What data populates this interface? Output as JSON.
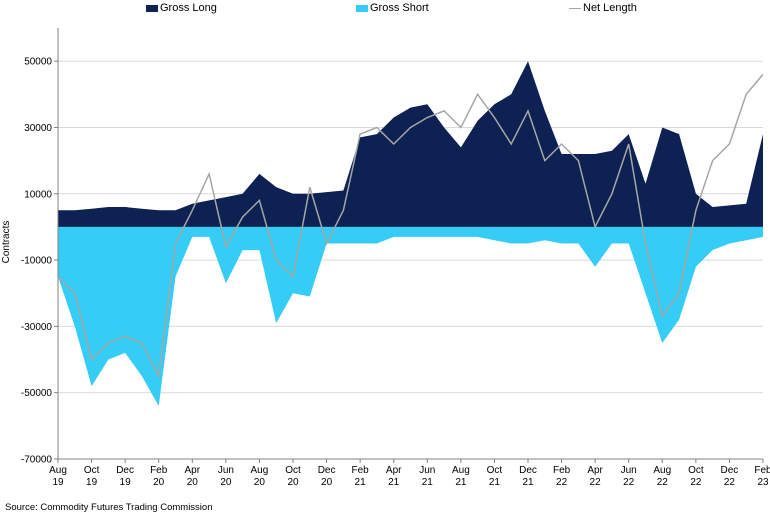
{
  "chart_data": {
    "type": "area",
    "ylabel": "Contracts",
    "ylim": [
      -70000,
      60000
    ],
    "yticks": [
      50000,
      30000,
      10000,
      -10000,
      -30000,
      -50000,
      -70000
    ],
    "ytick_labels": [
      "50000",
      "30000",
      "10000",
      "-10000",
      "-30000",
      "-50000",
      "-70000"
    ],
    "x_tick_labels": [
      {
        "m": "Aug",
        "y": "19"
      },
      {
        "m": "Oct",
        "y": "19"
      },
      {
        "m": "Dec",
        "y": "19"
      },
      {
        "m": "Feb",
        "y": "20"
      },
      {
        "m": "Apr",
        "y": "20"
      },
      {
        "m": "Jun",
        "y": "20"
      },
      {
        "m": "Aug",
        "y": "20"
      },
      {
        "m": "Oct",
        "y": "20"
      },
      {
        "m": "Dec",
        "y": "20"
      },
      {
        "m": "Feb",
        "y": "21"
      },
      {
        "m": "Apr",
        "y": "21"
      },
      {
        "m": "Jun",
        "y": "21"
      },
      {
        "m": "Aug",
        "y": "21"
      },
      {
        "m": "Oct",
        "y": "21"
      },
      {
        "m": "Dec",
        "y": "21"
      },
      {
        "m": "Feb",
        "y": "22"
      },
      {
        "m": "Apr",
        "y": "22"
      },
      {
        "m": "Jun",
        "y": "22"
      },
      {
        "m": "Aug",
        "y": "22"
      },
      {
        "m": "Oct",
        "y": "22"
      },
      {
        "m": "Dec",
        "y": "22"
      },
      {
        "m": "Feb",
        "y": "23"
      }
    ],
    "x": [
      "2019-08",
      "2019-09",
      "2019-10",
      "2019-11",
      "2019-12",
      "2020-01",
      "2020-02",
      "2020-03",
      "2020-04",
      "2020-05",
      "2020-06",
      "2020-07",
      "2020-08",
      "2020-09",
      "2020-10",
      "2020-11",
      "2020-12",
      "2021-01",
      "2021-02",
      "2021-03",
      "2021-04",
      "2021-05",
      "2021-06",
      "2021-07",
      "2021-08",
      "2021-09",
      "2021-10",
      "2021-11",
      "2021-12",
      "2022-01",
      "2022-02",
      "2022-03",
      "2022-04",
      "2022-05",
      "2022-06",
      "2022-07",
      "2022-08",
      "2022-09",
      "2022-10",
      "2022-11",
      "2022-12",
      "2023-01",
      "2023-02"
    ],
    "series": [
      {
        "name": "Gross Long",
        "color": "#0d2152",
        "values": [
          5000,
          5000,
          5500,
          6000,
          6000,
          5500,
          5000,
          5000,
          7000,
          8000,
          9000,
          10000,
          16000,
          12000,
          10000,
          10000,
          10500,
          11000,
          27000,
          28000,
          33000,
          36000,
          37000,
          30000,
          24000,
          32000,
          37000,
          40000,
          50000,
          35000,
          22000,
          22000,
          22000,
          23000,
          28000,
          13000,
          30000,
          28000,
          10000,
          6000,
          6500,
          7000,
          28000
        ]
      },
      {
        "name": "Gross Short",
        "color": "#35cdf5",
        "values": [
          -15000,
          -30000,
          -48000,
          -40000,
          -38000,
          -45000,
          -54000,
          -15000,
          -3000,
          -3000,
          -17000,
          -7000,
          -7000,
          -29000,
          -20000,
          -21000,
          -5000,
          -5000,
          -5000,
          -5000,
          -3000,
          -3000,
          -3000,
          -3000,
          -3000,
          -3000,
          -4000,
          -5000,
          -5000,
          -4000,
          -5000,
          -5000,
          -12000,
          -5000,
          -5000,
          -20000,
          -35000,
          -28000,
          -12000,
          -7000,
          -5000,
          -4000,
          -3000
        ]
      },
      {
        "name": "Net Length",
        "color": "#a6a6a6",
        "values": [
          -15000,
          -20000,
          -40000,
          -35000,
          -33000,
          -35000,
          -45000,
          -5000,
          5000,
          16000,
          -6000,
          3000,
          8000,
          -10000,
          -15000,
          12000,
          -5000,
          5000,
          28000,
          30000,
          25000,
          30000,
          33000,
          35000,
          30000,
          40000,
          33000,
          25000,
          35000,
          20000,
          25000,
          20000,
          0,
          10000,
          25000,
          -5000,
          -27000,
          -20000,
          5000,
          20000,
          25000,
          40000,
          46000
        ]
      }
    ]
  },
  "legend": {
    "gross_long": "Gross Long",
    "gross_short": "Gross Short",
    "net_length": "Net Length"
  },
  "source": "Source: Commodity Futures Trading Commission"
}
